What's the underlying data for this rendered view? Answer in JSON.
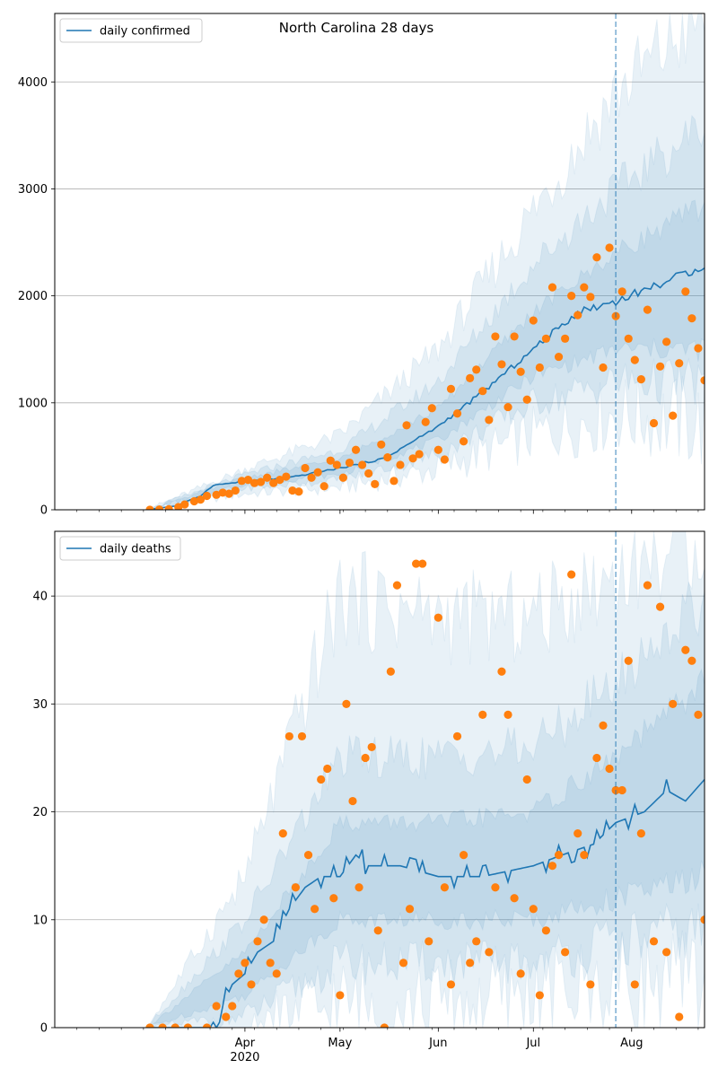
{
  "figure": {
    "title": "North Carolina 28 days"
  },
  "colors": {
    "model": "#1f77b4",
    "observed": "#ff7f0e",
    "grid": "#b0b0b0"
  },
  "x_axis": {
    "start": "2020-02-01",
    "end": "2020-08-24",
    "major_ticks": [
      {
        "date": "2020-04-01",
        "label": "Apr",
        "year_label": "2020"
      },
      {
        "date": "2020-05-01",
        "label": "May"
      },
      {
        "date": "2020-06-01",
        "label": "Jun"
      },
      {
        "date": "2020-07-01",
        "label": "Jul"
      },
      {
        "date": "2020-08-01",
        "label": "Aug"
      }
    ],
    "forecast_start": "2020-07-27"
  },
  "chart_data": [
    {
      "type": "line",
      "legend": "daily confirmed",
      "legend_location": "upper left",
      "grid": "horizontal",
      "ylim": [
        0,
        4640
      ],
      "yticks": [
        {
          "value": 0,
          "label": "0"
        },
        {
          "value": 1000,
          "label": "1000"
        },
        {
          "value": 2000,
          "label": "2000"
        },
        {
          "value": 3000,
          "label": "3000"
        },
        {
          "value": 4000,
          "label": "4000"
        }
      ],
      "median": [
        [
          "2020-03-01",
          0
        ],
        [
          "2020-03-10",
          35
        ],
        [
          "2020-03-18",
          130
        ],
        [
          "2020-03-22",
          230
        ],
        [
          "2020-04-01",
          265
        ],
        [
          "2020-04-15",
          300
        ],
        [
          "2020-05-01",
          390
        ],
        [
          "2020-05-15",
          480
        ],
        [
          "2020-06-01",
          780
        ],
        [
          "2020-06-15",
          1100
        ],
        [
          "2020-07-01",
          1500
        ],
        [
          "2020-07-15",
          1850
        ],
        [
          "2020-07-27",
          1950
        ],
        [
          "2020-08-07",
          2080
        ],
        [
          "2020-08-15",
          2170
        ],
        [
          "2020-08-24",
          2290
        ]
      ],
      "band_50": [
        [
          "2020-03-01",
          0,
          0
        ],
        [
          "2020-04-01",
          240,
          300
        ],
        [
          "2020-05-01",
          330,
          470
        ],
        [
          "2020-06-01",
          650,
          950
        ],
        [
          "2020-07-01",
          1250,
          1850
        ],
        [
          "2020-07-27",
          1500,
          2400
        ],
        [
          "2020-08-24",
          1500,
          2850
        ]
      ],
      "band_80": [
        [
          "2020-03-01",
          0,
          0
        ],
        [
          "2020-04-01",
          200,
          330
        ],
        [
          "2020-05-01",
          280,
          560
        ],
        [
          "2020-06-01",
          520,
          1200
        ],
        [
          "2020-07-01",
          1000,
          2300
        ],
        [
          "2020-07-27",
          1200,
          3000
        ],
        [
          "2020-08-24",
          1200,
          3600
        ]
      ],
      "band_95": [
        [
          "2020-03-01",
          0,
          0
        ],
        [
          "2020-04-01",
          150,
          380
        ],
        [
          "2020-05-01",
          210,
          700
        ],
        [
          "2020-06-01",
          380,
          1500
        ],
        [
          "2020-07-01",
          700,
          2800
        ],
        [
          "2020-07-27",
          900,
          3900
        ],
        [
          "2020-08-24",
          800,
          4640
        ]
      ],
      "observed": [
        [
          "2020-03-02",
          0
        ],
        [
          "2020-03-05",
          2
        ],
        [
          "2020-03-08",
          5
        ],
        [
          "2020-03-11",
          25
        ],
        [
          "2020-03-13",
          50
        ],
        [
          "2020-03-16",
          80
        ],
        [
          "2020-03-18",
          95
        ],
        [
          "2020-03-20",
          130
        ],
        [
          "2020-03-23",
          140
        ],
        [
          "2020-03-25",
          160
        ],
        [
          "2020-03-27",
          150
        ],
        [
          "2020-03-29",
          180
        ],
        [
          "2020-03-31",
          270
        ],
        [
          "2020-04-02",
          280
        ],
        [
          "2020-04-04",
          250
        ],
        [
          "2020-04-06",
          260
        ],
        [
          "2020-04-08",
          300
        ],
        [
          "2020-04-10",
          250
        ],
        [
          "2020-04-12",
          280
        ],
        [
          "2020-04-14",
          310
        ],
        [
          "2020-04-16",
          180
        ],
        [
          "2020-04-18",
          170
        ],
        [
          "2020-04-20",
          390
        ],
        [
          "2020-04-22",
          300
        ],
        [
          "2020-04-24",
          350
        ],
        [
          "2020-04-26",
          220
        ],
        [
          "2020-04-28",
          460
        ],
        [
          "2020-04-30",
          420
        ],
        [
          "2020-05-02",
          300
        ],
        [
          "2020-05-04",
          440
        ],
        [
          "2020-05-06",
          560
        ],
        [
          "2020-05-08",
          420
        ],
        [
          "2020-05-10",
          340
        ],
        [
          "2020-05-12",
          240
        ],
        [
          "2020-05-14",
          610
        ],
        [
          "2020-05-16",
          490
        ],
        [
          "2020-05-18",
          270
        ],
        [
          "2020-05-20",
          420
        ],
        [
          "2020-05-22",
          790
        ],
        [
          "2020-05-24",
          480
        ],
        [
          "2020-05-26",
          520
        ],
        [
          "2020-05-28",
          820
        ],
        [
          "2020-05-30",
          950
        ],
        [
          "2020-06-01",
          560
        ],
        [
          "2020-06-03",
          470
        ],
        [
          "2020-06-05",
          1130
        ],
        [
          "2020-06-07",
          900
        ],
        [
          "2020-06-09",
          640
        ],
        [
          "2020-06-11",
          1230
        ],
        [
          "2020-06-13",
          1310
        ],
        [
          "2020-06-15",
          1110
        ],
        [
          "2020-06-17",
          840
        ],
        [
          "2020-06-19",
          1620
        ],
        [
          "2020-06-21",
          1360
        ],
        [
          "2020-06-23",
          960
        ],
        [
          "2020-06-25",
          1620
        ],
        [
          "2020-06-27",
          1290
        ],
        [
          "2020-06-29",
          1030
        ],
        [
          "2020-07-01",
          1770
        ],
        [
          "2020-07-03",
          1330
        ],
        [
          "2020-07-05",
          1600
        ],
        [
          "2020-07-07",
          2080
        ],
        [
          "2020-07-09",
          1430
        ],
        [
          "2020-07-11",
          1600
        ],
        [
          "2020-07-13",
          2000
        ],
        [
          "2020-07-15",
          1820
        ],
        [
          "2020-07-17",
          2080
        ],
        [
          "2020-07-19",
          1990
        ],
        [
          "2020-07-21",
          2360
        ],
        [
          "2020-07-23",
          1330
        ],
        [
          "2020-07-25",
          2450
        ],
        [
          "2020-07-27",
          1810
        ],
        [
          "2020-07-29",
          2040
        ],
        [
          "2020-07-31",
          1600
        ],
        [
          "2020-08-02",
          1400
        ],
        [
          "2020-08-04",
          1220
        ],
        [
          "2020-08-06",
          1870
        ],
        [
          "2020-08-08",
          810
        ],
        [
          "2020-08-10",
          1340
        ],
        [
          "2020-08-12",
          1570
        ],
        [
          "2020-08-14",
          880
        ],
        [
          "2020-08-16",
          1370
        ],
        [
          "2020-08-18",
          2040
        ],
        [
          "2020-08-20",
          1790
        ],
        [
          "2020-08-22",
          1510
        ],
        [
          "2020-08-24",
          1210
        ]
      ]
    },
    {
      "type": "line",
      "legend": "daily deaths",
      "legend_location": "upper left",
      "grid": "horizontal",
      "ylim": [
        0,
        46
      ],
      "yticks": [
        {
          "value": 0,
          "label": "0"
        },
        {
          "value": 10,
          "label": "10"
        },
        {
          "value": 20,
          "label": "20"
        },
        {
          "value": 30,
          "label": "30"
        },
        {
          "value": 40,
          "label": "40"
        }
      ],
      "median": [
        [
          "2020-03-01",
          0
        ],
        [
          "2020-03-21",
          0
        ],
        [
          "2020-03-25",
          2
        ],
        [
          "2020-03-28",
          4
        ],
        [
          "2020-04-01",
          5
        ],
        [
          "2020-04-05",
          7
        ],
        [
          "2020-04-10",
          8
        ],
        [
          "2020-04-15",
          11
        ],
        [
          "2020-04-20",
          13
        ],
        [
          "2020-04-25",
          14
        ],
        [
          "2020-05-01",
          14
        ],
        [
          "2020-05-06",
          16
        ],
        [
          "2020-05-10",
          15
        ],
        [
          "2020-05-20",
          15
        ],
        [
          "2020-06-01",
          14
        ],
        [
          "2020-06-15",
          14
        ],
        [
          "2020-07-01",
          15
        ],
        [
          "2020-07-10",
          16
        ],
        [
          "2020-07-20",
          17
        ],
        [
          "2020-07-27",
          19
        ],
        [
          "2020-08-05",
          20
        ],
        [
          "2020-08-12",
          22
        ],
        [
          "2020-08-18",
          21
        ],
        [
          "2020-08-24",
          23
        ]
      ],
      "band_50": [
        [
          "2020-03-01",
          0,
          0
        ],
        [
          "2020-04-01",
          3,
          7
        ],
        [
          "2020-05-01",
          10,
          19
        ],
        [
          "2020-06-01",
          10,
          19
        ],
        [
          "2020-07-01",
          10,
          20
        ],
        [
          "2020-07-27",
          12,
          25
        ],
        [
          "2020-08-24",
          14,
          32
        ]
      ],
      "band_80": [
        [
          "2020-03-01",
          0,
          0
        ],
        [
          "2020-04-01",
          1,
          10
        ],
        [
          "2020-05-01",
          6,
          25
        ],
        [
          "2020-06-01",
          6,
          25
        ],
        [
          "2020-07-01",
          6,
          26
        ],
        [
          "2020-07-27",
          8,
          32
        ],
        [
          "2020-08-24",
          9,
          40
        ]
      ],
      "band_95": [
        [
          "2020-03-01",
          0,
          0
        ],
        [
          "2020-04-01",
          0,
          14
        ],
        [
          "2020-05-01",
          2,
          40
        ],
        [
          "2020-06-01",
          2,
          38
        ],
        [
          "2020-07-01",
          3,
          38
        ],
        [
          "2020-07-27",
          4,
          42
        ],
        [
          "2020-08-24",
          4,
          46
        ]
      ],
      "observed": [
        [
          "2020-03-02",
          0
        ],
        [
          "2020-03-06",
          0
        ],
        [
          "2020-03-10",
          0
        ],
        [
          "2020-03-14",
          0
        ],
        [
          "2020-03-20",
          0
        ],
        [
          "2020-03-23",
          2
        ],
        [
          "2020-03-26",
          1
        ],
        [
          "2020-03-28",
          2
        ],
        [
          "2020-03-30",
          5
        ],
        [
          "2020-04-01",
          6
        ],
        [
          "2020-04-03",
          4
        ],
        [
          "2020-04-05",
          8
        ],
        [
          "2020-04-07",
          10
        ],
        [
          "2020-04-09",
          6
        ],
        [
          "2020-04-11",
          5
        ],
        [
          "2020-04-13",
          18
        ],
        [
          "2020-04-15",
          27
        ],
        [
          "2020-04-17",
          13
        ],
        [
          "2020-04-19",
          27
        ],
        [
          "2020-04-21",
          16
        ],
        [
          "2020-04-23",
          11
        ],
        [
          "2020-04-25",
          23
        ],
        [
          "2020-04-27",
          24
        ],
        [
          "2020-04-29",
          12
        ],
        [
          "2020-05-01",
          3
        ],
        [
          "2020-05-03",
          30
        ],
        [
          "2020-05-05",
          21
        ],
        [
          "2020-05-07",
          13
        ],
        [
          "2020-05-09",
          25
        ],
        [
          "2020-05-11",
          26
        ],
        [
          "2020-05-13",
          9
        ],
        [
          "2020-05-15",
          0
        ],
        [
          "2020-05-17",
          33
        ],
        [
          "2020-05-19",
          41
        ],
        [
          "2020-05-21",
          6
        ],
        [
          "2020-05-23",
          11
        ],
        [
          "2020-05-25",
          43
        ],
        [
          "2020-05-27",
          43
        ],
        [
          "2020-05-29",
          8
        ],
        [
          "2020-06-01",
          38
        ],
        [
          "2020-06-03",
          13
        ],
        [
          "2020-06-05",
          4
        ],
        [
          "2020-06-07",
          27
        ],
        [
          "2020-06-09",
          16
        ],
        [
          "2020-06-11",
          6
        ],
        [
          "2020-06-13",
          8
        ],
        [
          "2020-06-15",
          29
        ],
        [
          "2020-06-17",
          7
        ],
        [
          "2020-06-19",
          13
        ],
        [
          "2020-06-21",
          33
        ],
        [
          "2020-06-23",
          29
        ],
        [
          "2020-06-25",
          12
        ],
        [
          "2020-06-27",
          5
        ],
        [
          "2020-06-29",
          23
        ],
        [
          "2020-07-01",
          11
        ],
        [
          "2020-07-03",
          3
        ],
        [
          "2020-07-05",
          9
        ],
        [
          "2020-07-07",
          15
        ],
        [
          "2020-07-09",
          16
        ],
        [
          "2020-07-11",
          7
        ],
        [
          "2020-07-13",
          42
        ],
        [
          "2020-07-15",
          18
        ],
        [
          "2020-07-17",
          16
        ],
        [
          "2020-07-19",
          4
        ],
        [
          "2020-07-21",
          25
        ],
        [
          "2020-07-23",
          28
        ],
        [
          "2020-07-25",
          24
        ],
        [
          "2020-07-27",
          22
        ],
        [
          "2020-07-29",
          22
        ],
        [
          "2020-07-31",
          34
        ],
        [
          "2020-08-02",
          4
        ],
        [
          "2020-08-04",
          18
        ],
        [
          "2020-08-06",
          41
        ],
        [
          "2020-08-08",
          8
        ],
        [
          "2020-08-10",
          39
        ],
        [
          "2020-08-12",
          7
        ],
        [
          "2020-08-14",
          30
        ],
        [
          "2020-08-16",
          1
        ],
        [
          "2020-08-18",
          35
        ],
        [
          "2020-08-20",
          34
        ],
        [
          "2020-08-22",
          29
        ],
        [
          "2020-08-24",
          10
        ]
      ]
    }
  ]
}
